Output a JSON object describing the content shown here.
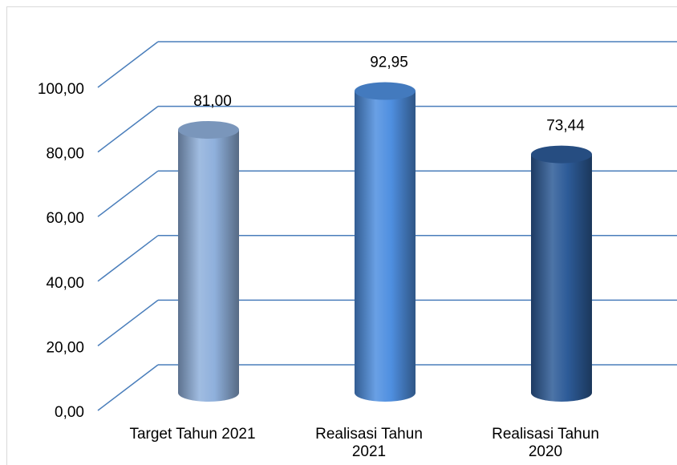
{
  "chart_data": {
    "type": "bar3d",
    "categories": [
      "Target Tahun 2021",
      "Realisasi Tahun 2021",
      "Realisasi Tahun 2020"
    ],
    "values": [
      81.0,
      92.95,
      73.44
    ],
    "value_labels": [
      "81,00",
      "92,95",
      "73,44"
    ],
    "colors": [
      "#8fb0dc",
      "#4f8fe0",
      "#2d5b98"
    ],
    "ylim": [
      0,
      100
    ],
    "yticks": [
      {
        "value": 0,
        "label": "0,00"
      },
      {
        "value": 20,
        "label": "20,00"
      },
      {
        "value": 40,
        "label": "40,00"
      },
      {
        "value": 60,
        "label": "60,00"
      },
      {
        "value": 80,
        "label": "80,00"
      },
      {
        "value": 100,
        "label": "100,00"
      }
    ],
    "grid": true
  }
}
